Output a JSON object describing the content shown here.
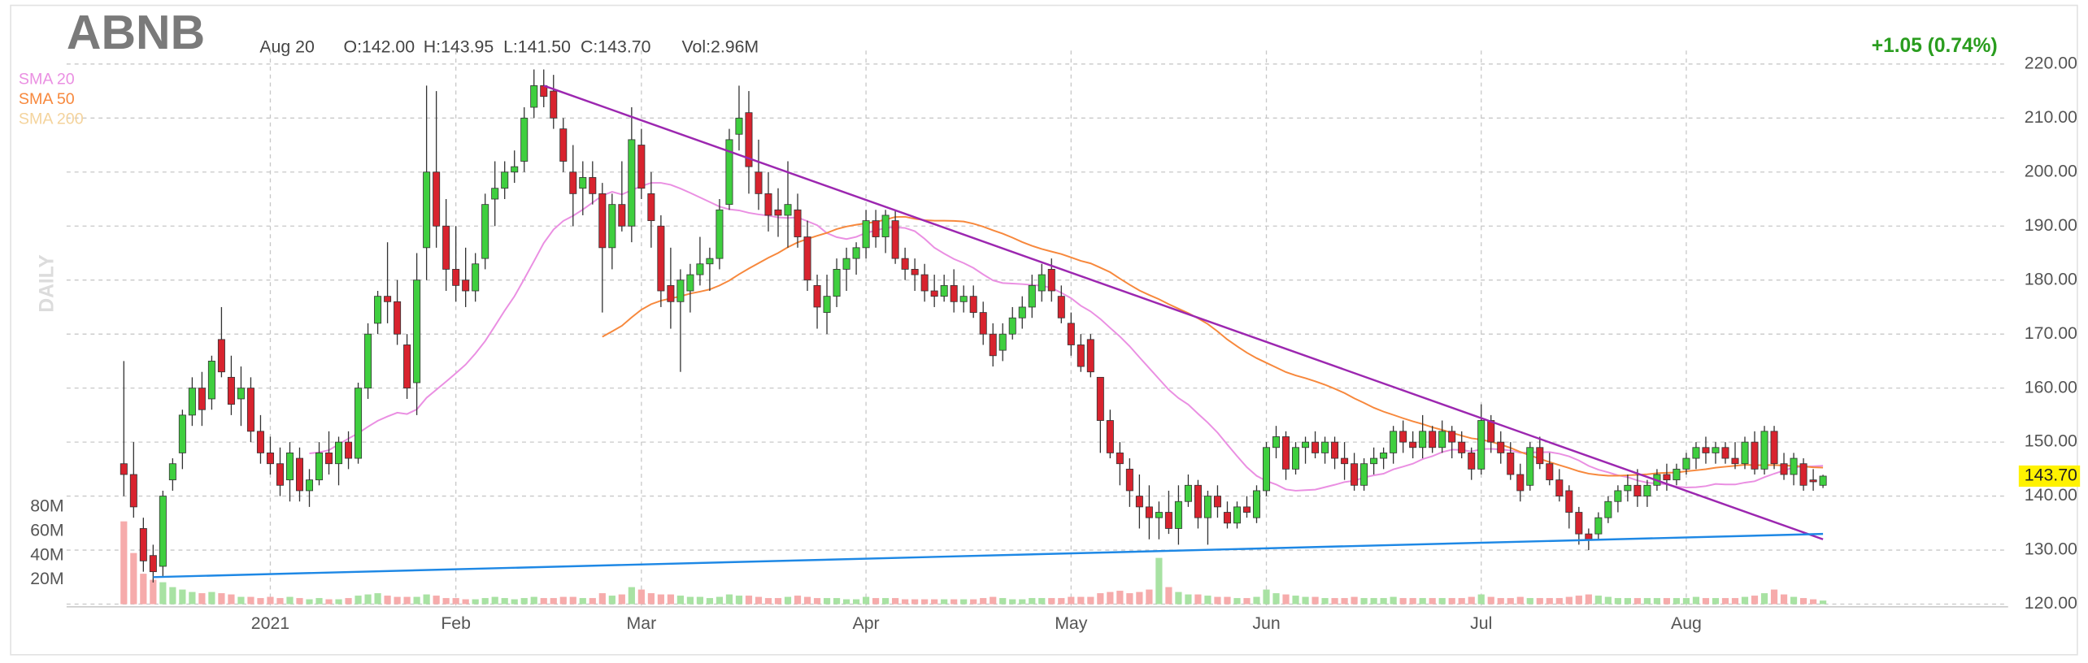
{
  "chart_data": {
    "type": "candlestick",
    "ticker": "ABNB",
    "date": "Aug 20",
    "ohlc_labels": [
      "O:142.00",
      "H:143.95",
      "L:141.50",
      "C:143.70"
    ],
    "volume_label": "Vol:2.96M",
    "change": "+1.05 (0.74%)",
    "interval": "DAILY",
    "last_price_label": "143.70",
    "up_color": "#3fcf3f",
    "down_color": "#d8232e",
    "volume_up_color": "#a8e2a3",
    "volume_down_color": "#f6abab",
    "change_color": "#2a9d1f",
    "sma": [
      {
        "name": "SMA 20",
        "period": 20,
        "color": "#ea8fe2"
      },
      {
        "name": "SMA 50",
        "period": 50,
        "color": "#f7883c"
      },
      {
        "name": "SMA 200",
        "period": 200,
        "color": "#f4d39c"
      }
    ],
    "trendlines": [
      {
        "color": "#9c27b0",
        "from": [
          43,
          216
        ],
        "to": [
          174,
          132
        ]
      },
      {
        "color": "#1e88e5",
        "from": [
          3,
          125
        ],
        "to": [
          174,
          133
        ]
      }
    ],
    "ylim": [
      119.5,
      222
    ],
    "yticks": [
      {
        "value": 120,
        "label": "120.00"
      },
      {
        "value": 130,
        "label": "130.00"
      },
      {
        "value": 140,
        "label": "140.00"
      },
      {
        "value": 150,
        "label": "150.00"
      },
      {
        "value": 160,
        "label": "160.00"
      },
      {
        "value": 170,
        "label": "170.00"
      },
      {
        "value": 180,
        "label": "180.00"
      },
      {
        "value": 190,
        "label": "190.00"
      },
      {
        "value": 200,
        "label": "200.00"
      },
      {
        "value": 210,
        "label": "210.00"
      },
      {
        "value": 220,
        "label": "220.00"
      }
    ],
    "volume_ylim": [
      0,
      100
    ],
    "volume_ticks": [
      {
        "value": 20,
        "label": "20M"
      },
      {
        "value": 40,
        "label": "40M"
      },
      {
        "value": 60,
        "label": "60M"
      },
      {
        "value": 80,
        "label": "80M"
      }
    ],
    "grid": true,
    "categories": [
      null,
      null,
      null,
      null,
      null,
      null,
      null,
      null,
      null,
      null,
      null,
      null,
      null,
      null,
      null,
      "2021",
      null,
      null,
      null,
      null,
      null,
      null,
      null,
      null,
      null,
      null,
      null,
      null,
      null,
      null,
      null,
      null,
      null,
      null,
      "Feb",
      null,
      null,
      null,
      null,
      null,
      null,
      null,
      null,
      null,
      null,
      null,
      null,
      null,
      null,
      null,
      null,
      null,
      null,
      "Mar",
      null,
      null,
      null,
      null,
      null,
      null,
      null,
      null,
      null,
      null,
      null,
      null,
      null,
      null,
      null,
      null,
      null,
      null,
      null,
      null,
      null,
      null,
      "Apr",
      null,
      null,
      null,
      null,
      null,
      null,
      null,
      null,
      null,
      null,
      null,
      null,
      null,
      null,
      null,
      null,
      null,
      null,
      null,
      null,
      "May",
      null,
      null,
      null,
      null,
      null,
      null,
      null,
      null,
      null,
      null,
      null,
      null,
      null,
      null,
      null,
      null,
      null,
      null,
      null,
      "Jun",
      null,
      null,
      null,
      null,
      null,
      null,
      null,
      null,
      null,
      null,
      null,
      null,
      null,
      null,
      null,
      null,
      null,
      null,
      null,
      null,
      null,
      "Jul",
      null,
      null,
      null,
      null,
      null,
      null,
      null,
      null,
      null,
      null,
      null,
      null,
      null,
      null,
      null,
      null,
      null,
      null,
      null,
      null,
      "Aug",
      null,
      null,
      null,
      null,
      null,
      null,
      null,
      null,
      null,
      null,
      null,
      null,
      null,
      null
    ],
    "candles": [
      [
        146,
        165,
        140,
        144
      ],
      [
        144,
        150,
        136,
        138
      ],
      [
        134,
        136,
        126,
        128
      ],
      [
        129,
        131,
        124,
        126
      ],
      [
        127,
        141,
        125,
        140
      ],
      [
        143,
        147,
        141,
        146
      ],
      [
        148,
        156,
        145,
        155
      ],
      [
        155,
        162,
        153,
        160
      ],
      [
        160,
        163,
        153,
        156
      ],
      [
        158,
        166,
        156,
        165
      ],
      [
        169,
        175,
        162,
        163
      ],
      [
        162,
        166,
        155,
        157
      ],
      [
        158,
        164,
        153,
        160
      ],
      [
        160,
        162,
        150,
        152
      ],
      [
        152,
        155,
        146,
        148
      ],
      [
        148,
        151,
        144,
        146
      ],
      [
        146,
        149,
        140,
        142
      ],
      [
        143,
        150,
        139,
        148
      ],
      [
        147,
        149,
        139,
        141
      ],
      [
        141,
        145,
        138,
        143
      ],
      [
        143,
        150,
        142,
        148
      ],
      [
        148,
        152,
        144,
        146
      ],
      [
        146,
        151,
        142,
        150
      ],
      [
        150,
        152,
        145,
        147
      ],
      [
        147,
        161,
        146,
        160
      ],
      [
        160,
        172,
        158,
        170
      ],
      [
        172,
        178,
        170,
        177
      ],
      [
        177,
        187,
        172,
        176
      ],
      [
        176,
        180,
        168,
        170
      ],
      [
        168,
        170,
        158,
        160
      ],
      [
        161,
        185,
        155,
        180
      ],
      [
        186,
        216,
        180,
        200
      ],
      [
        200,
        215,
        186,
        190
      ],
      [
        190,
        195,
        178,
        182
      ],
      [
        182,
        190,
        176,
        179
      ],
      [
        180,
        186,
        175,
        178
      ],
      [
        178,
        185,
        176,
        183
      ],
      [
        184,
        196,
        182,
        194
      ],
      [
        195,
        202,
        190,
        197
      ],
      [
        197,
        202,
        195,
        200
      ],
      [
        200,
        204,
        198,
        201
      ],
      [
        202,
        212,
        200,
        210
      ],
      [
        212,
        219,
        210,
        216
      ],
      [
        216,
        219,
        212,
        214
      ],
      [
        215,
        218,
        208,
        210
      ],
      [
        208,
        210,
        200,
        202
      ],
      [
        200,
        205,
        190,
        196
      ],
      [
        197,
        202,
        192,
        199
      ],
      [
        199,
        202,
        194,
        196
      ],
      [
        196,
        198,
        174,
        186
      ],
      [
        186,
        196,
        182,
        194
      ],
      [
        194,
        202,
        189,
        190
      ],
      [
        190,
        212,
        187,
        206
      ],
      [
        205,
        208,
        195,
        197
      ],
      [
        196,
        200,
        186,
        191
      ],
      [
        190,
        192,
        175,
        178
      ],
      [
        179,
        186,
        171,
        176
      ],
      [
        176,
        182,
        163,
        180
      ],
      [
        178,
        183,
        174,
        181
      ],
      [
        181,
        188,
        179,
        183
      ],
      [
        183,
        186,
        178,
        184
      ],
      [
        184,
        195,
        182,
        193
      ],
      [
        194,
        208,
        193,
        206
      ],
      [
        207,
        216,
        204,
        210
      ],
      [
        211,
        215,
        196,
        201
      ],
      [
        200,
        206,
        193,
        196
      ],
      [
        196,
        200,
        189,
        192
      ],
      [
        193,
        197,
        188,
        192
      ],
      [
        192,
        202,
        186,
        194
      ],
      [
        193,
        196,
        186,
        188
      ],
      [
        188,
        191,
        178,
        180
      ],
      [
        179,
        181,
        171,
        175
      ],
      [
        174,
        181,
        170,
        177
      ],
      [
        177,
        184,
        175,
        182
      ],
      [
        182,
        186,
        178,
        184
      ],
      [
        184,
        187,
        181,
        186
      ],
      [
        186,
        193,
        184,
        191
      ],
      [
        191,
        193,
        186,
        188
      ],
      [
        188,
        193,
        185,
        192
      ],
      [
        191,
        193,
        183,
        184
      ],
      [
        184,
        186,
        180,
        182
      ],
      [
        182,
        184,
        178,
        181
      ],
      [
        181,
        183,
        176,
        178
      ],
      [
        178,
        181,
        175,
        177
      ],
      [
        177,
        181,
        176,
        179
      ],
      [
        179,
        182,
        174,
        176
      ],
      [
        176,
        179,
        174,
        177
      ],
      [
        177,
        179,
        173,
        174
      ],
      [
        174,
        176,
        168,
        170
      ],
      [
        170,
        172,
        164,
        166
      ],
      [
        167,
        172,
        165,
        170
      ],
      [
        170,
        175,
        169,
        173
      ],
      [
        173,
        177,
        171,
        175
      ],
      [
        175,
        181,
        173,
        179
      ],
      [
        178,
        183,
        176,
        181
      ],
      [
        182,
        184,
        176,
        178
      ],
      [
        177,
        179,
        172,
        173
      ],
      [
        172,
        174,
        166,
        168
      ],
      [
        168,
        170,
        163,
        164
      ],
      [
        169,
        170,
        162,
        163
      ],
      [
        162,
        162,
        148,
        154
      ],
      [
        154,
        156,
        147,
        148
      ],
      [
        148,
        150,
        142,
        146
      ],
      [
        145,
        147,
        138,
        141
      ],
      [
        140,
        144,
        134,
        138
      ],
      [
        138,
        142,
        132,
        136
      ],
      [
        136,
        139,
        132,
        137
      ],
      [
        137,
        141,
        133,
        134
      ],
      [
        134,
        142,
        131,
        139
      ],
      [
        139,
        144,
        138,
        142
      ],
      [
        142,
        143,
        134,
        136
      ],
      [
        136,
        141,
        131,
        140
      ],
      [
        140,
        142,
        136,
        138
      ],
      [
        137,
        139,
        134,
        135
      ],
      [
        135,
        139,
        134,
        138
      ],
      [
        138,
        140,
        136,
        137
      ],
      [
        136,
        142,
        135,
        141
      ],
      [
        141,
        150,
        140,
        149
      ],
      [
        149,
        153,
        147,
        151
      ],
      [
        151,
        152,
        143,
        145
      ],
      [
        145,
        150,
        144,
        149
      ],
      [
        149,
        151,
        146,
        150
      ],
      [
        150,
        152,
        147,
        148
      ],
      [
        148,
        151,
        146,
        150
      ],
      [
        150,
        151,
        145,
        147
      ],
      [
        147,
        150,
        143,
        146
      ],
      [
        146,
        148,
        141,
        142
      ],
      [
        142,
        147,
        141,
        146
      ],
      [
        146,
        149,
        144,
        147
      ],
      [
        147,
        149,
        145,
        148
      ],
      [
        148,
        153,
        146,
        152
      ],
      [
        152,
        154,
        148,
        150
      ],
      [
        150,
        152,
        147,
        149
      ],
      [
        149,
        155,
        147,
        152
      ],
      [
        152,
        153,
        148,
        149
      ],
      [
        149,
        154,
        148,
        152
      ],
      [
        152,
        153,
        147,
        150
      ],
      [
        150,
        152,
        147,
        148
      ],
      [
        148,
        149,
        143,
        145
      ],
      [
        145,
        157,
        144,
        154
      ],
      [
        154,
        155,
        148,
        150
      ],
      [
        150,
        152,
        146,
        148
      ],
      [
        148,
        150,
        143,
        144
      ],
      [
        144,
        146,
        139,
        141
      ],
      [
        142,
        150,
        141,
        149
      ],
      [
        149,
        151,
        145,
        146
      ],
      [
        146,
        148,
        142,
        143
      ],
      [
        143,
        145,
        139,
        140
      ],
      [
        141,
        142,
        134,
        137
      ],
      [
        137,
        138,
        131,
        133
      ],
      [
        133,
        134,
        130,
        132
      ],
      [
        133,
        137,
        132,
        136
      ],
      [
        136,
        140,
        135,
        139
      ],
      [
        139,
        142,
        137,
        141
      ],
      [
        141,
        144,
        139,
        142
      ],
      [
        142,
        145,
        138,
        140
      ],
      [
        140,
        143,
        138,
        142
      ],
      [
        142,
        145,
        141,
        144
      ],
      [
        144,
        146,
        141,
        143
      ],
      [
        143,
        146,
        142,
        145
      ],
      [
        145,
        148,
        144,
        147
      ],
      [
        147,
        150,
        145,
        149
      ],
      [
        149,
        151,
        146,
        148
      ],
      [
        148,
        150,
        146,
        149
      ],
      [
        149,
        150,
        146,
        147
      ],
      [
        147,
        150,
        145,
        146
      ],
      [
        146,
        151,
        145,
        150
      ],
      [
        150,
        152,
        144,
        145
      ],
      [
        145,
        153,
        144,
        152
      ],
      [
        152,
        153,
        145,
        146
      ],
      [
        146,
        148,
        143,
        144
      ],
      [
        144,
        148,
        142,
        147
      ],
      [
        146,
        147,
        141,
        142
      ],
      [
        143,
        145,
        141,
        142.65
      ],
      [
        142.0,
        143.95,
        141.5,
        143.7
      ]
    ],
    "volumes": [
      68,
      42,
      25,
      20,
      18,
      14,
      12,
      10,
      9,
      10,
      9,
      8,
      6,
      6,
      5,
      6,
      5,
      6,
      5,
      4,
      5,
      4,
      4,
      5,
      7,
      8,
      9,
      7,
      6,
      6,
      6,
      8,
      7,
      5,
      5,
      4,
      4,
      5,
      6,
      5,
      4,
      5,
      6,
      5,
      5,
      6,
      6,
      5,
      5,
      9,
      7,
      8,
      14,
      12,
      9,
      8,
      8,
      7,
      6,
      6,
      5,
      6,
      8,
      7,
      7,
      6,
      5,
      5,
      6,
      7,
      6,
      5,
      5,
      5,
      4,
      4,
      6,
      5,
      5,
      5,
      4,
      4,
      4,
      4,
      4,
      4,
      4,
      4,
      5,
      6,
      5,
      4,
      4,
      5,
      5,
      5,
      5,
      6,
      6,
      6,
      9,
      10,
      11,
      9,
      10,
      12,
      38,
      14,
      10,
      8,
      8,
      7,
      6,
      6,
      5,
      5,
      6,
      12,
      9,
      8,
      7,
      6,
      6,
      5,
      5,
      5,
      6,
      5,
      5,
      5,
      6,
      5,
      5,
      5,
      5,
      5,
      5,
      5,
      6,
      8,
      6,
      5,
      5,
      6,
      5,
      5,
      5,
      5,
      6,
      7,
      8,
      7,
      6,
      5,
      5,
      5,
      5,
      5,
      5,
      5,
      5,
      6,
      5,
      5,
      5,
      5,
      6,
      7,
      9,
      12,
      8,
      6,
      5,
      4,
      2.96
    ]
  }
}
